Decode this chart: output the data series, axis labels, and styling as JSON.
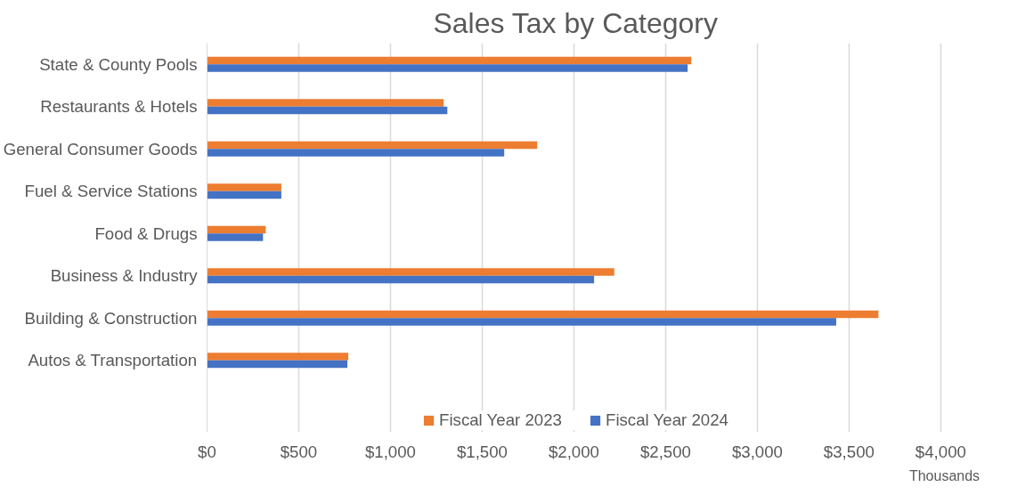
{
  "chart_data": {
    "type": "bar",
    "orientation": "horizontal",
    "title": "Sales Tax by Category",
    "xlabel": "Thousands",
    "categories": [
      "State & County Pools",
      "Restaurants & Hotels",
      "General Consumer Goods",
      "Fuel & Service Stations",
      "Food & Drugs",
      "Business & Industry",
      "Building & Construction",
      "Autos & Transportation"
    ],
    "series": [
      {
        "name": "Fiscal Year 2023",
        "color": "#ed7d31",
        "values": [
          2640,
          1290,
          1800,
          405,
          320,
          2220,
          3660,
          770
        ]
      },
      {
        "name": "Fiscal Year 2024",
        "color": "#4472c4",
        "values": [
          2620,
          1310,
          1620,
          405,
          305,
          2110,
          3430,
          765
        ]
      }
    ],
    "xlim": [
      0,
      4000
    ],
    "xticks": [
      {
        "value": 0,
        "label": "$0"
      },
      {
        "value": 500,
        "label": "$500"
      },
      {
        "value": 1000,
        "label": "$1,000"
      },
      {
        "value": 1500,
        "label": "$1,500"
      },
      {
        "value": 2000,
        "label": "$2,000"
      },
      {
        "value": 2500,
        "label": "$2,500"
      },
      {
        "value": 3000,
        "label": "$3,000"
      },
      {
        "value": 3500,
        "label": "$3,500"
      },
      {
        "value": 4000,
        "label": "$4,000"
      }
    ],
    "grid": "x",
    "legend": "bottom"
  }
}
